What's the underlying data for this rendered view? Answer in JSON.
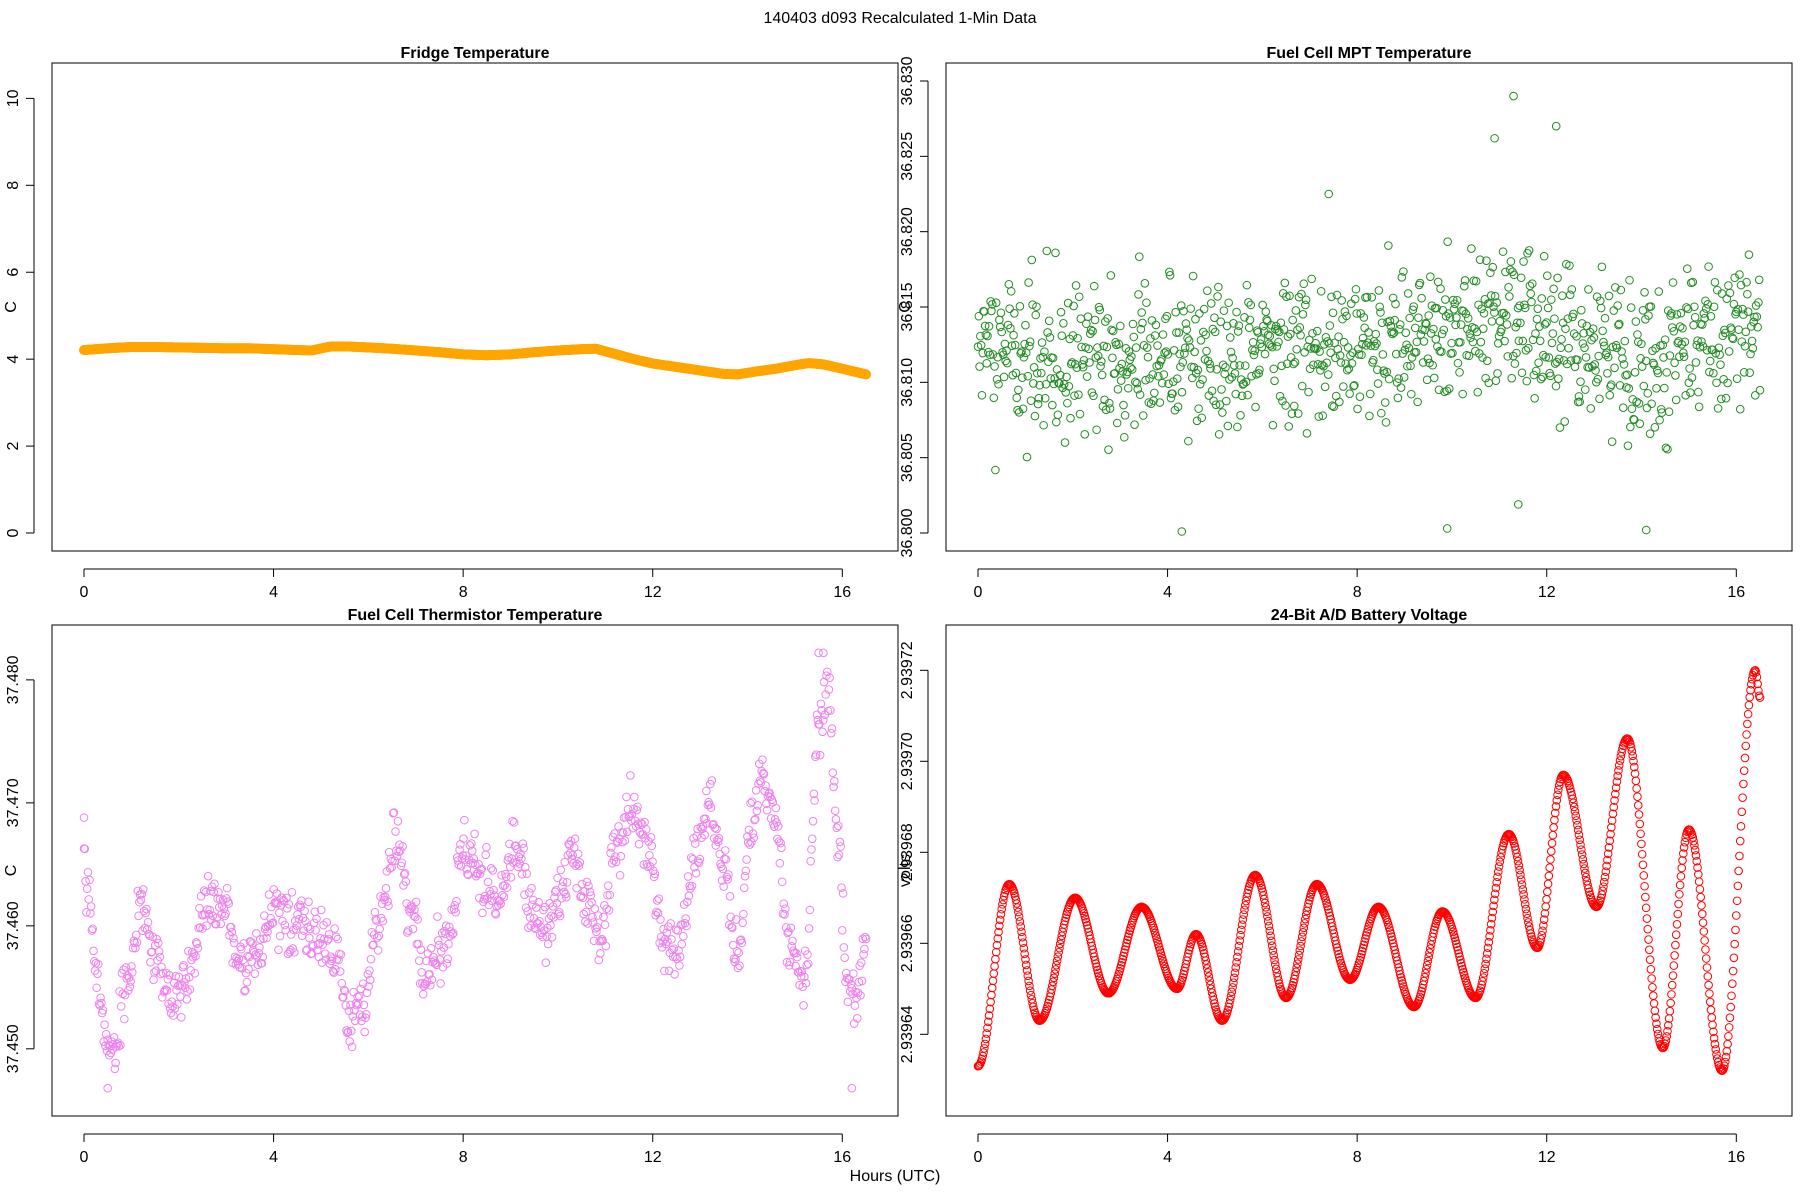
{
  "figure": {
    "title": "140403   d093   Recalculated 1-Min Data",
    "shared_xlabel": "Hours (UTC)"
  },
  "chart_data": [
    {
      "id": "fridge",
      "type": "scatter",
      "title": "Fridge Temperature",
      "xlabel": "",
      "ylabel": "C",
      "xlim": [
        0,
        16.5
      ],
      "ylim": [
        0,
        10.4
      ],
      "xticks": [
        0,
        4,
        8,
        12,
        16
      ],
      "yticks": [
        0,
        2,
        4,
        6,
        8,
        10
      ],
      "ytick_labels": [
        "0",
        "2",
        "4",
        "6",
        "8",
        "10"
      ],
      "color": "#ffa500",
      "marker": "filled-dense",
      "x": [
        0.0,
        0.5,
        1.0,
        1.5,
        2.0,
        2.5,
        3.0,
        3.5,
        4.0,
        4.5,
        4.8,
        5.2,
        5.6,
        6.0,
        6.5,
        7.0,
        7.5,
        8.0,
        8.5,
        9.0,
        9.5,
        10.0,
        10.5,
        10.8,
        11.2,
        11.6,
        12.0,
        12.5,
        13.0,
        13.5,
        13.8,
        14.2,
        14.6,
        15.0,
        15.3,
        15.6,
        16.0,
        16.5
      ],
      "y": [
        4.21,
        4.25,
        4.28,
        4.28,
        4.27,
        4.26,
        4.25,
        4.25,
        4.23,
        4.21,
        4.2,
        4.29,
        4.29,
        4.27,
        4.24,
        4.2,
        4.16,
        4.11,
        4.09,
        4.11,
        4.16,
        4.2,
        4.23,
        4.24,
        4.12,
        4.0,
        3.9,
        3.82,
        3.74,
        3.66,
        3.65,
        3.72,
        3.78,
        3.86,
        3.91,
        3.88,
        3.78,
        3.65
      ]
    },
    {
      "id": "mpt",
      "type": "scatter",
      "title": "Fuel Cell MPT Temperature",
      "xlabel": "",
      "ylabel": "C",
      "xlim": [
        0,
        16.5
      ],
      "ylim": [
        36.8,
        36.83
      ],
      "xticks": [
        0,
        4,
        8,
        12,
        16
      ],
      "yticks": [
        36.8,
        36.805,
        36.81,
        36.815,
        36.82,
        36.825,
        36.83
      ],
      "ytick_labels": [
        "36.800",
        "36.805",
        "36.810",
        "36.815",
        "36.820",
        "36.825",
        "36.830"
      ],
      "color": "#228b22",
      "marker": "open-circle",
      "noise_model": {
        "n_points": 990,
        "x_start": 0,
        "x_end": 16.5,
        "center_x": [
          0,
          4,
          8,
          10,
          11,
          12,
          14,
          16.5
        ],
        "center_y": [
          36.812,
          36.8115,
          36.8125,
          36.8135,
          36.8145,
          36.8135,
          36.812,
          36.8135
        ],
        "spread": 0.0045,
        "seed": 93
      },
      "highlight_points": [
        {
          "x": 11.3,
          "y": 36.829
        },
        {
          "x": 12.2,
          "y": 36.827
        },
        {
          "x": 10.9,
          "y": 36.8262
        },
        {
          "x": 4.3,
          "y": 36.8001
        },
        {
          "x": 9.9,
          "y": 36.8003
        },
        {
          "x": 14.1,
          "y": 36.8002
        },
        {
          "x": 11.4,
          "y": 36.8019
        },
        {
          "x": 7.4,
          "y": 36.8225
        }
      ]
    },
    {
      "id": "thermistor",
      "type": "scatter",
      "title": "Fuel Cell Thermistor Temperature",
      "xlabel": "",
      "ylabel": "C",
      "xlim": [
        0,
        16.5
      ],
      "ylim": [
        37.446,
        37.483
      ],
      "xticks": [
        0,
        4,
        8,
        12,
        16
      ],
      "yticks": [
        37.45,
        37.46,
        37.47,
        37.48
      ],
      "ytick_labels": [
        "37.450",
        "37.460",
        "37.470",
        "37.480"
      ],
      "color": "#ee82ee",
      "marker": "open-circle",
      "noise_model": {
        "n_points": 990,
        "x_start": 0,
        "x_end": 16.5,
        "envelope_x": [
          0.0,
          0.05,
          0.3,
          0.55,
          0.9,
          1.2,
          1.5,
          1.8,
          2.2,
          2.6,
          3.0,
          3.3,
          3.7,
          4.0,
          4.5,
          5.0,
          5.3,
          5.6,
          5.9,
          6.2,
          6.6,
          6.9,
          7.2,
          7.6,
          8.0,
          8.4,
          8.8,
          9.1,
          9.4,
          9.7,
          10.0,
          10.3,
          10.6,
          10.9,
          11.2,
          11.6,
          11.9,
          12.3,
          12.6,
          12.9,
          13.2,
          13.5,
          13.8,
          14.1,
          14.3,
          14.6,
          14.9,
          15.2,
          15.5,
          15.7,
          15.9,
          16.1,
          16.3,
          16.5
        ],
        "envelope_y": [
          37.468,
          37.463,
          37.455,
          37.449,
          37.455,
          37.462,
          37.458,
          37.454,
          37.456,
          37.462,
          37.461,
          37.456,
          37.458,
          37.461,
          37.46,
          37.459,
          37.458,
          37.452,
          37.453,
          37.46,
          37.467,
          37.461,
          37.456,
          37.458,
          37.466,
          37.464,
          37.462,
          37.467,
          37.462,
          37.459,
          37.462,
          37.466,
          37.462,
          37.459,
          37.466,
          37.47,
          37.466,
          37.458,
          37.459,
          37.466,
          37.47,
          37.465,
          37.457,
          37.468,
          37.473,
          37.468,
          37.458,
          37.455,
          37.476,
          37.479,
          37.468,
          37.455,
          37.454,
          37.459
        ],
        "spread": 0.0035,
        "seed": 403
      },
      "highlight_points": [
        {
          "x": 15.5,
          "y": 37.4822
        },
        {
          "x": 15.6,
          "y": 37.4822
        },
        {
          "x": 16.2,
          "y": 37.4468
        },
        {
          "x": 0.5,
          "y": 37.4468
        },
        {
          "x": 0.0,
          "y": 37.4688
        }
      ]
    },
    {
      "id": "battery",
      "type": "scatter",
      "title": "24-Bit A/D Battery Voltage",
      "xlabel": "",
      "ylabel": "volts",
      "xlim": [
        0,
        16.5
      ],
      "ylim": [
        2.939626,
        2.939726
      ],
      "xticks": [
        0,
        4,
        8,
        12,
        16
      ],
      "yticks": [
        2.93964,
        2.93966,
        2.93968,
        2.9397,
        2.93972
      ],
      "ytick_labels": [
        "2.93964",
        "2.93966",
        "2.93968",
        "2.93970",
        "2.93972"
      ],
      "color": "#ff0000",
      "marker": "open-circle",
      "n_points": 990,
      "x": [
        0.0,
        0.66,
        1.3,
        2.05,
        2.75,
        3.45,
        4.2,
        4.6,
        5.15,
        5.85,
        6.5,
        7.15,
        7.85,
        8.45,
        9.2,
        9.8,
        10.5,
        11.2,
        11.8,
        12.35,
        13.05,
        13.7,
        14.45,
        15.0,
        15.7,
        16.4,
        16.5
      ],
      "y": [
        2.939633,
        2.939673,
        2.939643,
        2.93967,
        2.939649,
        2.939668,
        2.93965,
        2.939662,
        2.939643,
        2.939675,
        2.939648,
        2.939673,
        2.939652,
        2.939668,
        2.939646,
        2.939667,
        2.939648,
        2.939684,
        2.939659,
        2.939697,
        2.939668,
        2.939705,
        2.939637,
        2.939685,
        2.939632,
        2.93972,
        2.939714
      ]
    }
  ]
}
